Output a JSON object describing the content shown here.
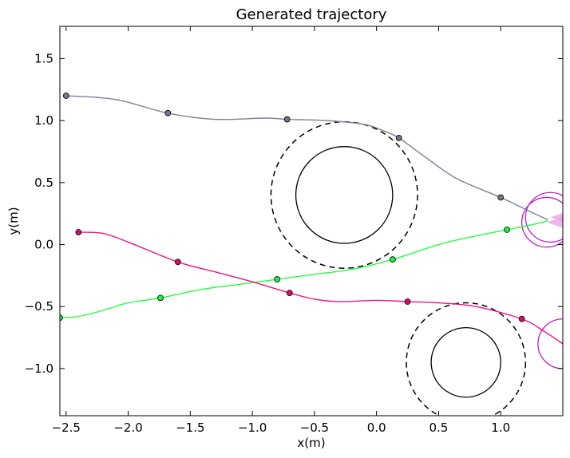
{
  "chart_data": {
    "type": "line",
    "title": "Generated trajectory",
    "xlabel": "x(m)",
    "ylabel": "y(m)",
    "xlim": [
      -2.55,
      1.5
    ],
    "ylim": [
      -1.38,
      1.76
    ],
    "xticks": [
      -2.5,
      -2.0,
      -1.5,
      -1.0,
      -0.5,
      0.0,
      0.5,
      1.0
    ],
    "xtick_labels": [
      "−2.5",
      "−2.0",
      "−1.5",
      "−1.0",
      "−0.5",
      "0.0",
      "0.5",
      "1.0"
    ],
    "yticks": [
      -1.0,
      -0.5,
      0.0,
      0.5,
      1.0,
      1.5
    ],
    "ytick_labels": [
      "−1.0",
      "−0.5",
      "0.0",
      "0.5",
      "1.0",
      "1.5"
    ],
    "grid": false,
    "series": [
      {
        "color": "#808098",
        "marker_color": "#74748c",
        "x": [
          -2.5,
          -2.1,
          -1.68,
          -1.3,
          -0.9,
          -0.72,
          -0.4,
          -0.1,
          0.05,
          0.18,
          0.4,
          0.65,
          1.0,
          1.25,
          1.38
        ],
        "y": [
          1.2,
          1.17,
          1.06,
          1.01,
          1.02,
          1.01,
          1.0,
          0.97,
          0.92,
          0.86,
          0.7,
          0.53,
          0.38,
          0.26,
          0.2
        ],
        "markers_x": [
          -2.5,
          -1.68,
          -0.72,
          0.18,
          1.0
        ],
        "markers_y": [
          1.2,
          1.06,
          1.01,
          0.86,
          0.38
        ]
      },
      {
        "color": "#22ff44",
        "marker_color": "#22ee44",
        "x": [
          -2.55,
          -2.4,
          -2.2,
          -2.0,
          -1.74,
          -1.4,
          -1.1,
          -0.8,
          -0.5,
          -0.2,
          0.13,
          0.5,
          0.8,
          1.05,
          1.25,
          1.38
        ],
        "y": [
          -0.59,
          -0.58,
          -0.53,
          -0.47,
          -0.43,
          -0.36,
          -0.32,
          -0.28,
          -0.24,
          -0.2,
          -0.12,
          0.0,
          0.07,
          0.12,
          0.16,
          0.19
        ],
        "markers_x": [
          -2.55,
          -1.74,
          -0.8,
          0.13,
          1.05
        ],
        "markers_y": [
          -0.59,
          -0.43,
          -0.28,
          -0.12,
          0.12
        ]
      },
      {
        "color": "#ee1188",
        "marker_color": "#cc1166",
        "x": [
          -2.4,
          -2.2,
          -2.0,
          -1.6,
          -1.3,
          -1.0,
          -0.7,
          -0.5,
          -0.3,
          0.0,
          0.25,
          0.5,
          0.8,
          1.17,
          1.35,
          1.5
        ],
        "y": [
          0.1,
          0.09,
          0.02,
          -0.14,
          -0.22,
          -0.3,
          -0.39,
          -0.44,
          -0.46,
          -0.45,
          -0.46,
          -0.47,
          -0.5,
          -0.6,
          -0.7,
          -0.8
        ],
        "markers_x": [
          -2.4,
          -1.6,
          -0.7,
          0.25,
          1.17
        ],
        "markers_y": [
          0.1,
          -0.14,
          -0.39,
          -0.46,
          -0.6
        ]
      }
    ],
    "obstacles": [
      {
        "cx": -0.26,
        "cy": 0.4,
        "r": 0.39,
        "safety_r": 0.59
      },
      {
        "cx": 0.72,
        "cy": -0.95,
        "r": 0.28,
        "safety_r": 0.48
      }
    ],
    "agents": [
      {
        "cx": 1.37,
        "cy": 0.18,
        "r": 0.2,
        "color": "#bb22cc",
        "fill": "#e8a0e8"
      },
      {
        "cx": 1.4,
        "cy": 0.22,
        "r": 0.2,
        "color": "#bb22cc",
        "fill": "#e8a0e8"
      },
      {
        "cx": 1.5,
        "cy": -0.8,
        "r": 0.2,
        "color": "#bb22cc",
        "fill": "#e8a0e8"
      }
    ]
  }
}
